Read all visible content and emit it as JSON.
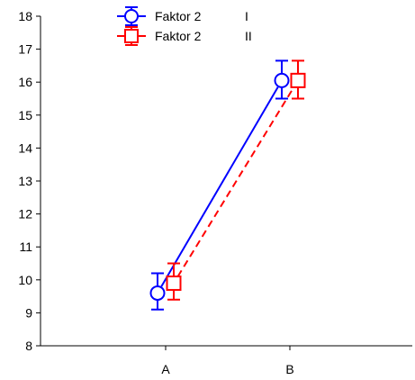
{
  "chart_data": {
    "type": "line",
    "title": "",
    "xlabel": "",
    "ylabel": "",
    "categories": [
      "A",
      "B"
    ],
    "ylim": [
      8,
      18
    ],
    "yticks": [
      8,
      9,
      10,
      11,
      12,
      13,
      14,
      15,
      16,
      17,
      18
    ],
    "grid": false,
    "legend_position": "top-center",
    "series": [
      {
        "name": "Faktor 2",
        "level": "I",
        "color": "#0000ff",
        "marker": "circle",
        "line_style": "solid",
        "values": [
          9.6,
          16.05
        ],
        "error_low": [
          9.1,
          15.5
        ],
        "error_high": [
          10.2,
          16.65
        ]
      },
      {
        "name": "Faktor 2",
        "level": "II",
        "color": "#ff0000",
        "marker": "square",
        "line_style": "dashed",
        "values": [
          9.9,
          16.05
        ],
        "error_low": [
          9.4,
          15.5
        ],
        "error_high": [
          10.5,
          16.65
        ]
      }
    ]
  }
}
